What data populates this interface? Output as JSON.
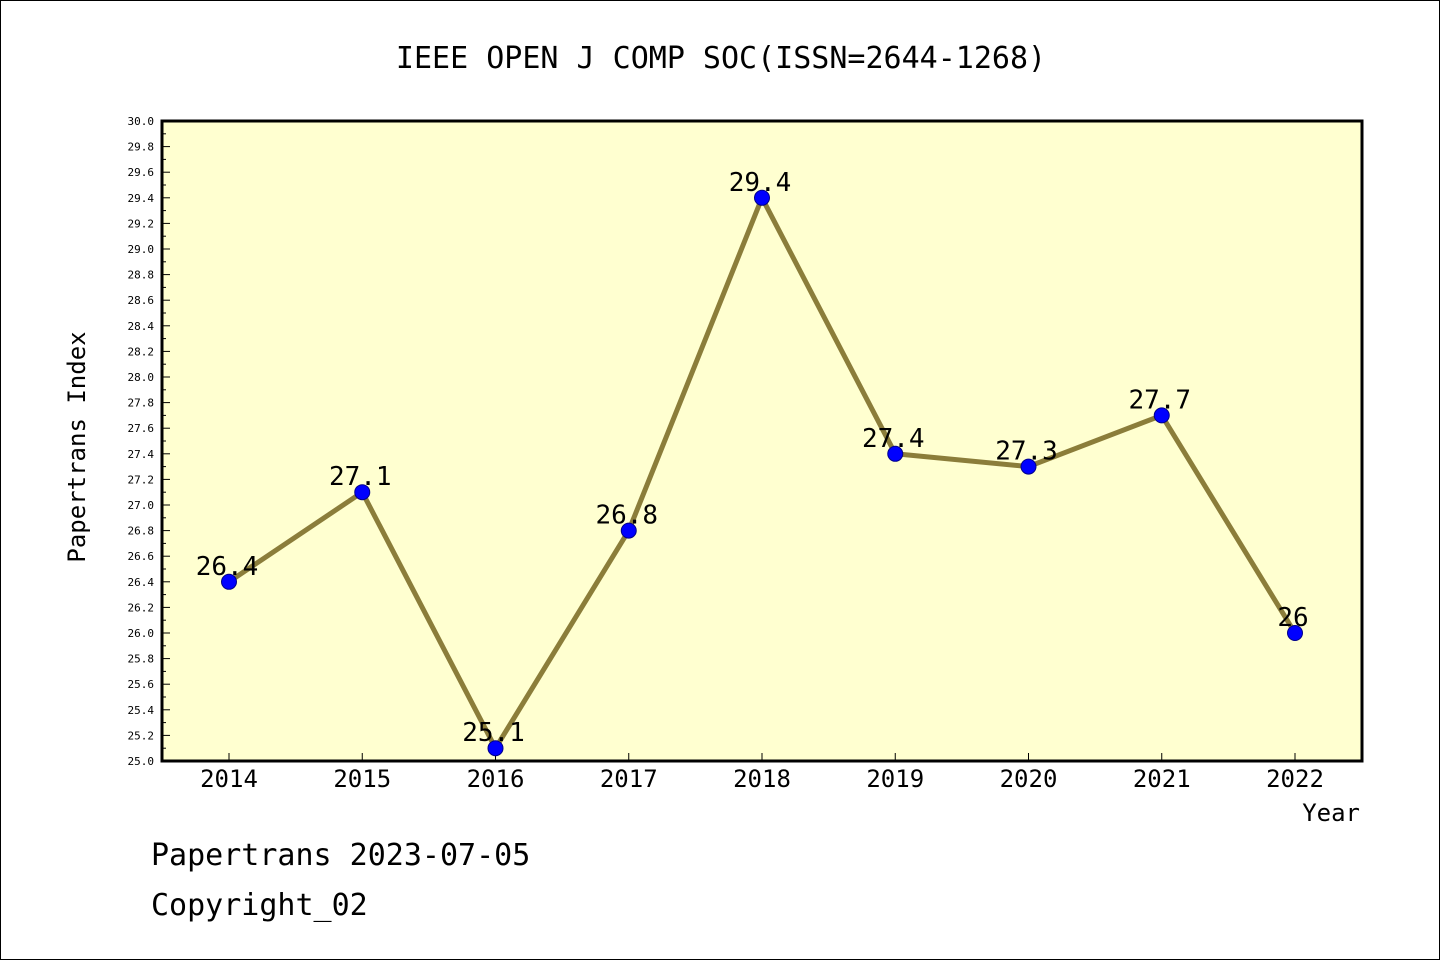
{
  "chart_data": {
    "type": "line",
    "title": "IEEE OPEN J COMP SOC(ISSN=2644-1268)",
    "xlabel": "Year",
    "ylabel": "Papertrans Index",
    "categories": [
      "2014",
      "2015",
      "2016",
      "2017",
      "2018",
      "2019",
      "2020",
      "2021",
      "2022"
    ],
    "values": [
      26.4,
      27.1,
      25.1,
      26.8,
      29.4,
      27.4,
      27.3,
      27.7,
      26
    ],
    "data_labels": [
      "26.4",
      "27.1",
      "25.1",
      "26.8",
      "29.4",
      "27.4",
      "27.3",
      "27.7",
      "26"
    ],
    "ylim": [
      25.0,
      30.0
    ],
    "ytick_step": 0.2,
    "grid": false,
    "colors": {
      "plot_background": "#ffffd0",
      "line": "#8b7d3a",
      "marker": "#0000ff"
    }
  },
  "footer": {
    "line1": "Papertrans 2023-07-05",
    "line2": "Copyright_02"
  }
}
